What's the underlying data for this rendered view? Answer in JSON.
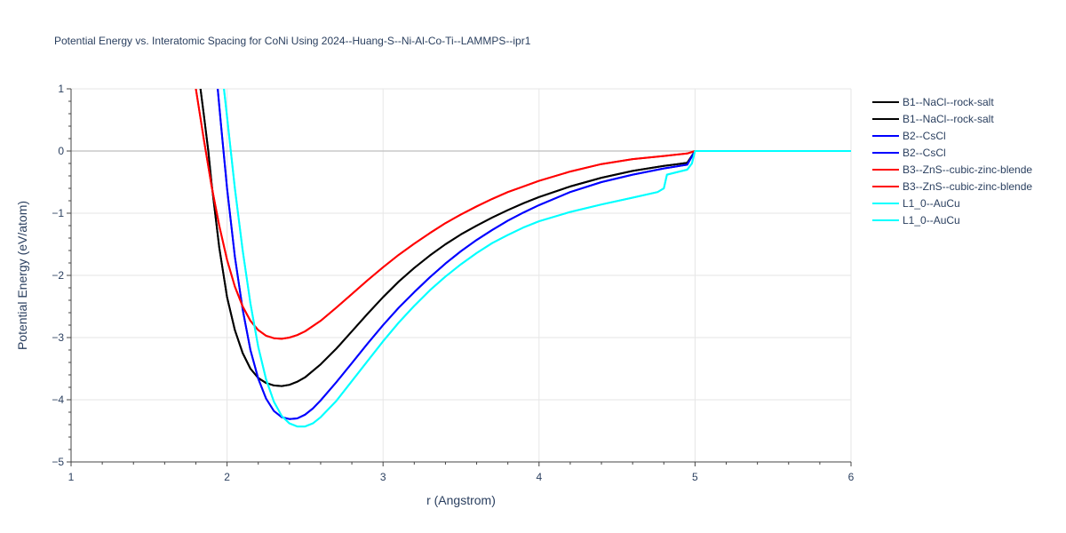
{
  "chart_data": {
    "type": "line",
    "title": "Potential Energy vs. Interatomic Spacing for CoNi Using 2024--Huang-S--Ni-Al-Co-Ti--LAMMPS--ipr1",
    "xlabel": "r (Angstrom)",
    "ylabel": "Potential Energy (eV/atom)",
    "xlim": [
      1,
      6
    ],
    "ylim": [
      -5,
      1
    ],
    "xticks": [
      1,
      2,
      3,
      4,
      5,
      6
    ],
    "xtick_labels": [
      "1",
      "2",
      "3",
      "4",
      "5",
      "6"
    ],
    "yticks": [
      1,
      0,
      -1,
      -2,
      -3,
      -4,
      -5
    ],
    "ytick_labels": [
      "1",
      "0",
      "−1",
      "−2",
      "−3",
      "−4",
      "−5"
    ],
    "grid": true,
    "legend_position": "right",
    "series": [
      {
        "name": "B1--NaCl--rock-salt",
        "color": "#000000",
        "x": [
          1.83,
          1.85,
          1.88,
          1.9,
          1.95,
          2.0,
          2.05,
          2.1,
          2.15,
          2.2,
          2.25,
          2.3,
          2.35,
          2.4,
          2.45,
          2.5,
          2.6,
          2.7,
          2.8,
          2.9,
          3.0,
          3.1,
          3.2,
          3.3,
          3.4,
          3.5,
          3.6,
          3.7,
          3.8,
          3.9,
          4.0,
          4.2,
          4.4,
          4.6,
          4.8,
          4.95,
          5.0,
          6.0
        ],
        "y": [
          1.0,
          0.6,
          0.0,
          -0.5,
          -1.55,
          -2.35,
          -2.88,
          -3.25,
          -3.5,
          -3.65,
          -3.73,
          -3.77,
          -3.78,
          -3.76,
          -3.71,
          -3.64,
          -3.43,
          -3.18,
          -2.9,
          -2.62,
          -2.35,
          -2.1,
          -1.88,
          -1.68,
          -1.5,
          -1.34,
          -1.2,
          -1.07,
          -0.95,
          -0.84,
          -0.74,
          -0.57,
          -0.43,
          -0.32,
          -0.24,
          -0.19,
          0.0,
          0.0
        ]
      },
      {
        "name": "B1--NaCl--rock-salt",
        "color": "#000000",
        "x": [
          1.83,
          1.85,
          1.88,
          1.9,
          1.95,
          2.0,
          2.05,
          2.1,
          2.15,
          2.2,
          2.25,
          2.3,
          2.35,
          2.4,
          2.45,
          2.5,
          2.6,
          2.7,
          2.8,
          2.9,
          3.0,
          3.1,
          3.2,
          3.3,
          3.4,
          3.5,
          3.6,
          3.7,
          3.8,
          3.9,
          4.0,
          4.2,
          4.4,
          4.6,
          4.8,
          4.95,
          5.0,
          6.0
        ],
        "y": [
          1.0,
          0.6,
          0.0,
          -0.5,
          -1.55,
          -2.35,
          -2.88,
          -3.25,
          -3.5,
          -3.65,
          -3.73,
          -3.77,
          -3.78,
          -3.76,
          -3.71,
          -3.64,
          -3.43,
          -3.18,
          -2.9,
          -2.62,
          -2.35,
          -2.1,
          -1.88,
          -1.68,
          -1.5,
          -1.34,
          -1.2,
          -1.07,
          -0.95,
          -0.84,
          -0.74,
          -0.57,
          -0.43,
          -0.32,
          -0.24,
          -0.19,
          0.0,
          0.0
        ]
      },
      {
        "name": "B2--CsCl",
        "color": "#0000ff",
        "x": [
          1.94,
          1.96,
          2.0,
          2.05,
          2.1,
          2.15,
          2.2,
          2.25,
          2.3,
          2.35,
          2.4,
          2.45,
          2.5,
          2.55,
          2.6,
          2.7,
          2.8,
          2.9,
          3.0,
          3.1,
          3.2,
          3.3,
          3.4,
          3.5,
          3.6,
          3.7,
          3.8,
          3.9,
          4.0,
          4.2,
          4.4,
          4.6,
          4.8,
          4.95,
          5.0,
          6.0
        ],
        "y": [
          1.0,
          0.45,
          -0.6,
          -1.7,
          -2.55,
          -3.2,
          -3.66,
          -3.98,
          -4.18,
          -4.28,
          -4.31,
          -4.3,
          -4.24,
          -4.14,
          -4.01,
          -3.72,
          -3.41,
          -3.1,
          -2.8,
          -2.52,
          -2.27,
          -2.03,
          -1.81,
          -1.61,
          -1.43,
          -1.27,
          -1.12,
          -0.99,
          -0.87,
          -0.66,
          -0.5,
          -0.38,
          -0.28,
          -0.22,
          0.0,
          0.0
        ]
      },
      {
        "name": "B2--CsCl",
        "color": "#0000ff",
        "x": [
          1.94,
          1.96,
          2.0,
          2.05,
          2.1,
          2.15,
          2.2,
          2.25,
          2.3,
          2.35,
          2.4,
          2.45,
          2.5,
          2.55,
          2.6,
          2.7,
          2.8,
          2.9,
          3.0,
          3.1,
          3.2,
          3.3,
          3.4,
          3.5,
          3.6,
          3.7,
          3.8,
          3.9,
          4.0,
          4.2,
          4.4,
          4.6,
          4.8,
          4.95,
          5.0,
          6.0
        ],
        "y": [
          1.0,
          0.45,
          -0.6,
          -1.7,
          -2.55,
          -3.2,
          -3.66,
          -3.98,
          -4.18,
          -4.28,
          -4.31,
          -4.3,
          -4.24,
          -4.14,
          -4.01,
          -3.72,
          -3.41,
          -3.1,
          -2.8,
          -2.52,
          -2.27,
          -2.03,
          -1.81,
          -1.61,
          -1.43,
          -1.27,
          -1.12,
          -0.99,
          -0.87,
          -0.66,
          -0.5,
          -0.38,
          -0.28,
          -0.22,
          0.0,
          0.0
        ]
      },
      {
        "name": "B3--ZnS--cubic-zinc-blende",
        "color": "#ff0000",
        "x": [
          1.8,
          1.85,
          1.9,
          1.95,
          2.0,
          2.05,
          2.1,
          2.15,
          2.2,
          2.25,
          2.3,
          2.35,
          2.4,
          2.45,
          2.5,
          2.6,
          2.7,
          2.8,
          2.9,
          3.0,
          3.1,
          3.2,
          3.3,
          3.4,
          3.5,
          3.6,
          3.7,
          3.8,
          3.9,
          4.0,
          4.2,
          4.4,
          4.6,
          4.8,
          4.95,
          5.0,
          6.0
        ],
        "y": [
          1.0,
          0.2,
          -0.55,
          -1.2,
          -1.75,
          -2.18,
          -2.5,
          -2.73,
          -2.88,
          -2.97,
          -3.01,
          -3.02,
          -3.0,
          -2.96,
          -2.9,
          -2.73,
          -2.52,
          -2.3,
          -2.08,
          -1.87,
          -1.67,
          -1.49,
          -1.32,
          -1.16,
          -1.02,
          -0.89,
          -0.77,
          -0.66,
          -0.57,
          -0.48,
          -0.33,
          -0.21,
          -0.13,
          -0.08,
          -0.04,
          0.0,
          0.0
        ]
      },
      {
        "name": "B3--ZnS--cubic-zinc-blende",
        "color": "#ff0000",
        "x": [
          1.8,
          1.85,
          1.9,
          1.95,
          2.0,
          2.05,
          2.1,
          2.15,
          2.2,
          2.25,
          2.3,
          2.35,
          2.4,
          2.45,
          2.5,
          2.6,
          2.7,
          2.8,
          2.9,
          3.0,
          3.1,
          3.2,
          3.3,
          3.4,
          3.5,
          3.6,
          3.7,
          3.8,
          3.9,
          4.0,
          4.2,
          4.4,
          4.6,
          4.8,
          4.95,
          5.0,
          6.0
        ],
        "y": [
          1.0,
          0.2,
          -0.55,
          -1.2,
          -1.75,
          -2.18,
          -2.5,
          -2.73,
          -2.88,
          -2.97,
          -3.01,
          -3.02,
          -3.0,
          -2.96,
          -2.9,
          -2.73,
          -2.52,
          -2.3,
          -2.08,
          -1.87,
          -1.67,
          -1.49,
          -1.32,
          -1.16,
          -1.02,
          -0.89,
          -0.77,
          -0.66,
          -0.57,
          -0.48,
          -0.33,
          -0.21,
          -0.13,
          -0.08,
          -0.04,
          0.0,
          0.0
        ]
      },
      {
        "name": "L1_0--AuCu",
        "color": "#00ffff",
        "x": [
          1.98,
          2.0,
          2.05,
          2.1,
          2.15,
          2.2,
          2.25,
          2.3,
          2.35,
          2.4,
          2.45,
          2.5,
          2.55,
          2.6,
          2.7,
          2.8,
          2.9,
          3.0,
          3.1,
          3.2,
          3.3,
          3.4,
          3.5,
          3.6,
          3.7,
          3.8,
          3.9,
          4.0,
          4.2,
          4.4,
          4.6,
          4.76,
          4.8,
          4.82,
          4.9,
          4.95,
          4.98,
          5.0,
          6.0
        ],
        "y": [
          1.0,
          0.55,
          -0.6,
          -1.6,
          -2.45,
          -3.15,
          -3.67,
          -4.03,
          -4.26,
          -4.38,
          -4.43,
          -4.43,
          -4.38,
          -4.28,
          -4.02,
          -3.7,
          -3.38,
          -3.06,
          -2.76,
          -2.49,
          -2.24,
          -2.02,
          -1.82,
          -1.64,
          -1.48,
          -1.35,
          -1.23,
          -1.13,
          -0.98,
          -0.86,
          -0.75,
          -0.66,
          -0.6,
          -0.38,
          -0.33,
          -0.3,
          -0.2,
          0.0,
          0.0
        ]
      },
      {
        "name": "L1_0--AuCu",
        "color": "#00ffff",
        "x": [
          1.98,
          2.0,
          2.05,
          2.1,
          2.15,
          2.2,
          2.25,
          2.3,
          2.35,
          2.4,
          2.45,
          2.5,
          2.55,
          2.6,
          2.7,
          2.8,
          2.9,
          3.0,
          3.1,
          3.2,
          3.3,
          3.4,
          3.5,
          3.6,
          3.7,
          3.8,
          3.9,
          4.0,
          4.2,
          4.4,
          4.6,
          4.76,
          4.8,
          4.82,
          4.9,
          4.95,
          4.98,
          5.0,
          6.0
        ],
        "y": [
          1.0,
          0.55,
          -0.6,
          -1.6,
          -2.45,
          -3.15,
          -3.67,
          -4.03,
          -4.26,
          -4.38,
          -4.43,
          -4.43,
          -4.38,
          -4.28,
          -4.02,
          -3.7,
          -3.38,
          -3.06,
          -2.76,
          -2.49,
          -2.24,
          -2.02,
          -1.82,
          -1.64,
          -1.48,
          -1.35,
          -1.23,
          -1.13,
          -0.98,
          -0.86,
          -0.75,
          -0.66,
          -0.6,
          -0.38,
          -0.33,
          -0.3,
          -0.2,
          0.0,
          0.0
        ]
      }
    ]
  }
}
